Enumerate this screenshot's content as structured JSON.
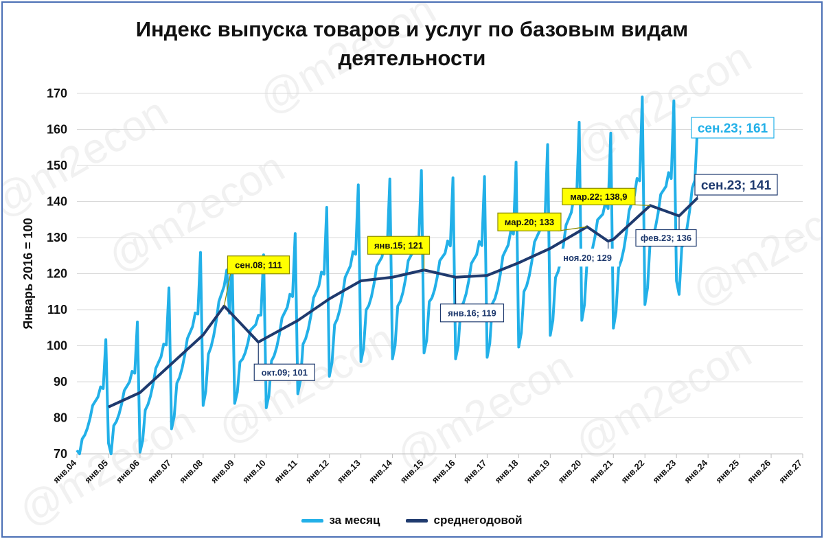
{
  "title_line1": "Индекс выпуска товаров и услуг по базовым видам",
  "title_line2": "деятельности",
  "watermark": "@m2econ",
  "colors": {
    "monthly": "#22b0e8",
    "average": "#1f3a6e",
    "grid": "#d9d9d9",
    "callout_yellow": "#ffff00",
    "frame": "#4a6fb5"
  },
  "legend": {
    "monthly_label": "за месяц",
    "average_label": "среднегодовой"
  },
  "chart_data": {
    "type": "line",
    "title": "Индекс выпуска товаров и услуг по базовым видам деятельности",
    "ylabel": "Январь 2016 = 100",
    "xlabel": "",
    "ylim": [
      70,
      170
    ],
    "yticks": [
      70,
      80,
      90,
      100,
      110,
      120,
      130,
      140,
      150,
      160,
      170
    ],
    "grid": true,
    "legend_position": "bottom",
    "x_tick_labels": [
      "янв.04",
      "янв.05",
      "янв.06",
      "янв.07",
      "янв.08",
      "янв.09",
      "янв.10",
      "янв.11",
      "янв.12",
      "янв.13",
      "янв.14",
      "янв.15",
      "янв.16",
      "янв.17",
      "янв.18",
      "янв.19",
      "янв.20",
      "янв.21",
      "янв.22",
      "янв.23",
      "янв.24",
      "янв.25",
      "янв.26",
      "янв.27"
    ],
    "x_start": "янв.04",
    "x_end": "янв.27",
    "series": [
      {
        "name": "за месяц",
        "color": "#22b0e8",
        "seasonal_profile": [
          0.81,
          0.84,
          0.93,
          0.94,
          0.96,
          0.99,
          1.03,
          1.04,
          1.05,
          1.08,
          1.07,
          1.23
        ],
        "note_points": [
          {
            "x": "янв.04",
            "y": 71
          },
          {
            "x": "янв.05",
            "y": 73
          },
          {
            "x": "окт.08",
            "y": 121
          },
          {
            "x": "янв.09",
            "y": 84
          },
          {
            "x": "дек.21",
            "y": 169
          },
          {
            "x": "янв.23",
            "y": 118
          },
          {
            "x": "сен.23",
            "y": 161
          }
        ]
      },
      {
        "name": "среднегодовой",
        "color": "#1f3a6e",
        "points": [
          {
            "x": "янв.05",
            "y": 83
          },
          {
            "x": "янв.06",
            "y": 87
          },
          {
            "x": "янв.07",
            "y": 95
          },
          {
            "x": "янв.08",
            "y": 103
          },
          {
            "x": "сен.08",
            "y": 111
          },
          {
            "x": "окт.09",
            "y": 101
          },
          {
            "x": "янв.11",
            "y": 107
          },
          {
            "x": "янв.12",
            "y": 113
          },
          {
            "x": "янв.13",
            "y": 118
          },
          {
            "x": "янв.14",
            "y": 119
          },
          {
            "x": "янв.15",
            "y": 121
          },
          {
            "x": "янв.16",
            "y": 119
          },
          {
            "x": "янв.17",
            "y": 119.5
          },
          {
            "x": "янв.18",
            "y": 123
          },
          {
            "x": "янв.19",
            "y": 127
          },
          {
            "x": "мар.20",
            "y": 133
          },
          {
            "x": "ноя.20",
            "y": 129
          },
          {
            "x": "янв.21",
            "y": 129.5
          },
          {
            "x": "мар.22",
            "y": 138.9
          },
          {
            "x": "фев.23",
            "y": 136
          },
          {
            "x": "сен.23",
            "y": 141
          }
        ]
      }
    ],
    "annotations": [
      {
        "label": "сен.08; 111",
        "x": "сен.08",
        "y": 111,
        "series": "среднегодовой",
        "style": "yellow"
      },
      {
        "label": "окт.09; 101",
        "x": "окт.09",
        "y": 101,
        "series": "среднегодовой",
        "style": "white"
      },
      {
        "label": "янв.15; 121",
        "x": "янв.15",
        "y": 121,
        "series": "среднегодовой",
        "style": "yellow"
      },
      {
        "label": "янв.16; 119",
        "x": "янв.16",
        "y": 119,
        "series": "среднегодовой",
        "style": "white"
      },
      {
        "label": "мар.20; 133",
        "x": "мар.20",
        "y": 133,
        "series": "среднегодовой",
        "style": "yellow"
      },
      {
        "label": "ноя.20; 129",
        "x": "ноя.20",
        "y": 129,
        "series": "среднегодовой",
        "style": "white-plain"
      },
      {
        "label": "мар.22; 138,9",
        "x": "мар.22",
        "y": 138.9,
        "series": "среднегодовой",
        "style": "yellow"
      },
      {
        "label": "фев.23; 136",
        "x": "фев.23",
        "y": 136,
        "series": "среднегодовой",
        "style": "white"
      },
      {
        "label": "сен.23; 161",
        "x": "сен.23",
        "y": 161,
        "series": "за месяц",
        "style": "big-light"
      },
      {
        "label": "сен.23; 141",
        "x": "сен.23",
        "y": 141,
        "series": "среднегодовой",
        "style": "big-dark"
      }
    ]
  }
}
